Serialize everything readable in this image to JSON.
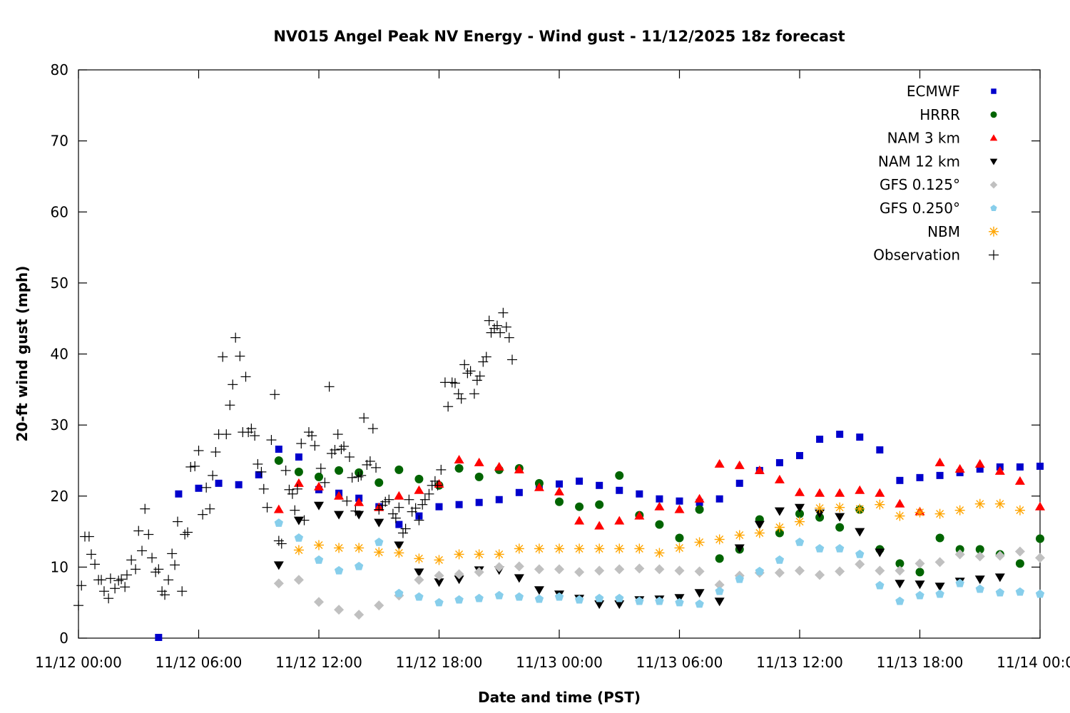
{
  "chart_data": {
    "type": "scatter",
    "title": "NV015 Angel Peak NV Energy - Wind gust - 11/12/2025 18z forecast",
    "xlabel": "Date and time (PST)",
    "ylabel": "20-ft wind gust (mph)",
    "x_units": "hours since 11/12 00:00",
    "xlim": [
      0,
      48
    ],
    "ylim": [
      0,
      80
    ],
    "x_ticks": [
      {
        "value": 0,
        "label": "11/12 00:00"
      },
      {
        "value": 6,
        "label": "11/12 06:00"
      },
      {
        "value": 12,
        "label": "11/12 12:00"
      },
      {
        "value": 18,
        "label": "11/12 18:00"
      },
      {
        "value": 24,
        "label": "11/13 00:00"
      },
      {
        "value": 30,
        "label": "11/13 06:00"
      },
      {
        "value": 36,
        "label": "11/13 12:00"
      },
      {
        "value": 42,
        "label": "11/13 18:00"
      },
      {
        "value": 48,
        "label": "11/14 00:00"
      }
    ],
    "y_ticks": [
      0,
      10,
      20,
      30,
      40,
      50,
      60,
      70,
      80
    ],
    "grid": false,
    "legend_position": "top-right",
    "series": [
      {
        "name": "ECMWF",
        "marker": "square",
        "color": "#0000cc",
        "x_start": 4,
        "values": [
          0.1,
          20.3,
          21.1,
          21.8,
          21.6,
          23.0,
          26.6,
          25.5,
          20.9,
          20.4,
          19.7,
          18.5,
          16.0,
          17.2,
          18.5,
          18.8,
          19.1,
          19.5,
          20.5,
          21.3,
          21.7,
          22.1,
          21.5,
          20.8,
          20.3,
          19.6,
          19.3,
          19.1,
          19.6,
          21.8,
          23.6,
          24.7,
          25.7,
          28.0,
          28.7,
          28.3,
          26.5,
          22.2,
          22.6,
          22.9,
          23.3,
          23.8,
          24.1,
          24.1,
          24.2
        ]
      },
      {
        "name": "HRRR",
        "marker": "circle",
        "color": "#006400",
        "x_start": 10,
        "values": [
          25.0,
          23.4,
          22.7,
          23.6,
          23.3,
          21.9,
          23.7,
          22.4,
          21.5,
          23.9,
          22.7,
          23.7,
          23.9,
          21.8,
          19.2,
          18.5,
          18.8,
          22.9,
          17.3,
          16.0,
          14.1,
          18.1,
          11.2,
          12.5,
          16.7,
          14.8,
          17.5,
          17.0,
          15.6,
          18.1,
          12.5,
          10.5,
          9.3,
          14.1,
          12.5,
          12.5,
          11.8,
          10.5,
          14.0
        ]
      },
      {
        "name": "NAM 3 km",
        "marker": "triangle-up",
        "color": "#ff0000",
        "x_start": 10,
        "values": [
          18.1,
          21.8,
          21.3,
          20.0,
          19.1,
          18.4,
          20.0,
          20.8,
          21.7,
          25.1,
          24.7,
          24.1,
          23.7,
          21.2,
          20.6,
          16.5,
          15.8,
          16.5,
          17.2,
          18.5,
          18.1,
          19.6,
          24.5,
          24.3,
          23.6,
          22.3,
          20.5,
          20.4,
          20.4,
          20.8,
          20.4,
          18.9,
          17.8,
          24.7,
          23.8,
          24.5,
          23.5,
          22.1,
          18.5
        ]
      },
      {
        "name": "NAM 12 km",
        "marker": "triangle-down",
        "color": "#000000",
        "x_start": 10,
        "values": [
          10.3,
          16.6,
          18.7,
          17.4,
          17.4,
          16.3,
          13.1,
          9.3,
          7.9,
          8.3,
          9.6,
          9.6,
          8.5,
          6.8,
          6.2,
          5.6,
          4.8,
          4.8,
          5.4,
          5.5,
          5.7,
          6.4,
          5.2,
          12.7,
          16.0,
          17.9,
          18.4,
          17.6,
          17.1,
          15.0,
          12.1,
          7.7,
          7.6,
          7.3,
          8.0,
          8.3,
          8.6
        ]
      },
      {
        "name": "GFS 0.125°",
        "marker": "diamond",
        "color": "#c0c0c0",
        "x_start": 10,
        "values": [
          7.7,
          8.2,
          5.1,
          4.0,
          3.3,
          4.6,
          6.0,
          8.2,
          8.8,
          9.0,
          9.3,
          10.0,
          10.1,
          9.7,
          9.7,
          9.3,
          9.5,
          9.7,
          9.8,
          9.7,
          9.5,
          9.4,
          7.5,
          8.8,
          9.2,
          9.2,
          9.5,
          8.9,
          9.4,
          10.4,
          9.5,
          9.5,
          10.5,
          10.7,
          11.8,
          11.5,
          11.6,
          12.2,
          11.3
        ]
      },
      {
        "name": "GFS 0.250°",
        "marker": "pentagon",
        "color": "#87ceeb",
        "x_start": 10,
        "values": [
          16.2,
          14.1,
          11.0,
          9.5,
          10.1,
          13.5,
          6.3,
          5.8,
          5.0,
          5.4,
          5.6,
          6.0,
          5.8,
          5.5,
          5.8,
          5.4,
          5.6,
          5.6,
          5.2,
          5.2,
          5.0,
          4.8,
          6.6,
          8.3,
          9.4,
          11.0,
          13.5,
          12.6,
          12.6,
          11.8,
          7.4,
          5.2,
          6.0,
          6.2,
          7.7,
          6.9,
          6.4,
          6.5,
          6.2
        ]
      },
      {
        "name": "NBM",
        "marker": "asterisk",
        "color": "#ffa500",
        "x_start": 11,
        "values": [
          12.4,
          13.1,
          12.7,
          12.7,
          12.1,
          12.0,
          11.2,
          11.0,
          11.8,
          11.8,
          11.8,
          12.6,
          12.6,
          12.6,
          12.6,
          12.6,
          12.6,
          12.6,
          12.0,
          12.7,
          13.5,
          13.9,
          14.5,
          14.8,
          15.6,
          16.4,
          18.3,
          18.4,
          18.2,
          18.8,
          17.2,
          17.7,
          17.5,
          18.0,
          18.9,
          18.9,
          18.0
        ]
      },
      {
        "name": "Observation",
        "marker": "plus",
        "color": "#000000",
        "points": [
          [
            0.0,
            4.6
          ],
          [
            0.15,
            7.4
          ],
          [
            0.32,
            14.3
          ],
          [
            0.53,
            14.3
          ],
          [
            0.64,
            11.8
          ],
          [
            0.82,
            10.4
          ],
          [
            1.0,
            8.2
          ],
          [
            1.14,
            8.2
          ],
          [
            1.28,
            6.6
          ],
          [
            1.5,
            5.6
          ],
          [
            1.6,
            8.4
          ],
          [
            1.82,
            7.0
          ],
          [
            2.0,
            8.1
          ],
          [
            2.14,
            8.3
          ],
          [
            2.32,
            7.2
          ],
          [
            2.42,
            8.9
          ],
          [
            2.64,
            11.0
          ],
          [
            2.85,
            9.7
          ],
          [
            3.0,
            15.1
          ],
          [
            3.17,
            12.3
          ],
          [
            3.32,
            18.2
          ],
          [
            3.5,
            14.6
          ],
          [
            3.67,
            11.3
          ],
          [
            3.85,
            9.3
          ],
          [
            4.0,
            9.7
          ],
          [
            4.17,
            6.6
          ],
          [
            4.31,
            6.1
          ],
          [
            4.49,
            8.2
          ],
          [
            4.67,
            11.9
          ],
          [
            4.81,
            10.3
          ],
          [
            4.95,
            16.4
          ],
          [
            5.17,
            6.6
          ],
          [
            5.31,
            14.6
          ],
          [
            5.45,
            14.9
          ],
          [
            5.6,
            24.1
          ],
          [
            5.81,
            24.2
          ],
          [
            6.0,
            26.4
          ],
          [
            6.2,
            17.4
          ],
          [
            6.38,
            21.2
          ],
          [
            6.56,
            18.2
          ],
          [
            6.7,
            22.9
          ],
          [
            6.85,
            26.2
          ],
          [
            7.0,
            28.7
          ],
          [
            7.2,
            39.6
          ],
          [
            7.38,
            28.7
          ],
          [
            7.56,
            32.8
          ],
          [
            7.7,
            35.7
          ],
          [
            7.84,
            42.3
          ],
          [
            8.06,
            39.7
          ],
          [
            8.2,
            29.0
          ],
          [
            8.35,
            36.8
          ],
          [
            8.48,
            29.0
          ],
          [
            8.63,
            29.5
          ],
          [
            8.8,
            28.5
          ],
          [
            8.95,
            24.5
          ],
          [
            9.13,
            23.4
          ],
          [
            9.25,
            21.0
          ],
          [
            9.42,
            18.4
          ],
          [
            9.63,
            27.9
          ],
          [
            9.8,
            34.3
          ],
          [
            10.0,
            13.7
          ],
          [
            10.14,
            13.3
          ],
          [
            10.35,
            23.6
          ],
          [
            10.52,
            20.9
          ],
          [
            10.68,
            20.3
          ],
          [
            10.8,
            18.0
          ],
          [
            10.93,
            21.0
          ],
          [
            11.12,
            27.4
          ],
          [
            11.27,
            16.6
          ],
          [
            11.5,
            29.0
          ],
          [
            11.65,
            28.5
          ],
          [
            11.8,
            27.1
          ],
          [
            12.1,
            23.9
          ],
          [
            12.3,
            21.9
          ],
          [
            12.52,
            35.4
          ],
          [
            12.64,
            26.0
          ],
          [
            12.8,
            26.5
          ],
          [
            12.95,
            28.7
          ],
          [
            13.12,
            26.6
          ],
          [
            13.25,
            27.0
          ],
          [
            13.4,
            19.3
          ],
          [
            13.53,
            25.5
          ],
          [
            13.66,
            22.6
          ],
          [
            13.83,
            17.9
          ],
          [
            13.97,
            22.7
          ],
          [
            14.11,
            22.9
          ],
          [
            14.25,
            31.0
          ],
          [
            14.4,
            24.4
          ],
          [
            14.56,
            24.9
          ],
          [
            14.7,
            29.5
          ],
          [
            14.85,
            24.0
          ],
          [
            15.0,
            18.1
          ],
          [
            15.18,
            18.7
          ],
          [
            15.32,
            19.2
          ],
          [
            15.5,
            19.5
          ],
          [
            15.7,
            17.5
          ],
          [
            15.84,
            16.9
          ],
          [
            16.0,
            18.4
          ],
          [
            16.2,
            14.8
          ],
          [
            16.33,
            15.4
          ],
          [
            16.5,
            19.5
          ],
          [
            16.65,
            17.8
          ],
          [
            16.83,
            18.3
          ],
          [
            17.0,
            16.6
          ],
          [
            17.17,
            18.8
          ],
          [
            17.3,
            19.5
          ],
          [
            17.5,
            20.3
          ],
          [
            17.65,
            21.5
          ],
          [
            17.8,
            22.1
          ],
          [
            17.93,
            21.5
          ],
          [
            18.1,
            23.7
          ],
          [
            18.3,
            36.0
          ],
          [
            18.45,
            32.6
          ],
          [
            18.65,
            36.0
          ],
          [
            18.8,
            35.9
          ],
          [
            18.97,
            34.4
          ],
          [
            19.11,
            33.7
          ],
          [
            19.27,
            38.5
          ],
          [
            19.42,
            37.3
          ],
          [
            19.57,
            37.6
          ],
          [
            19.76,
            34.4
          ],
          [
            19.9,
            36.3
          ],
          [
            20.04,
            36.9
          ],
          [
            20.2,
            38.9
          ],
          [
            20.36,
            39.6
          ],
          [
            20.5,
            44.7
          ],
          [
            20.6,
            43.0
          ],
          [
            20.76,
            43.6
          ],
          [
            20.9,
            44.0
          ],
          [
            21.05,
            43.0
          ],
          [
            21.2,
            45.8
          ],
          [
            21.36,
            43.8
          ],
          [
            21.5,
            42.3
          ],
          [
            21.65,
            39.2
          ]
        ]
      }
    ]
  }
}
